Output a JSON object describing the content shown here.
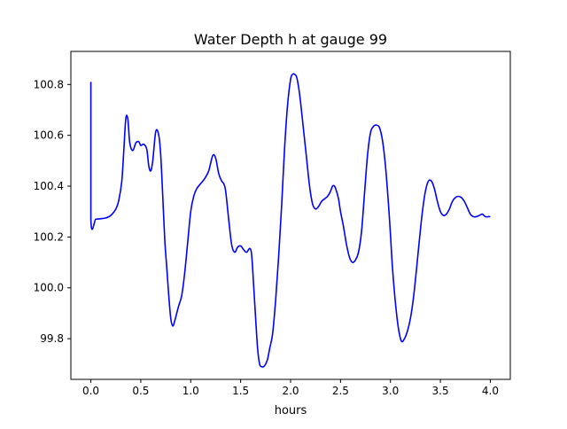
{
  "chart_data": {
    "type": "line",
    "title": "Water Depth h at gauge 99",
    "xlabel": "hours",
    "ylabel": "",
    "xlim": [
      -0.2,
      4.2
    ],
    "ylim": [
      99.64,
      100.93
    ],
    "xticks": [
      0.0,
      0.5,
      1.0,
      1.5,
      2.0,
      2.5,
      3.0,
      3.5,
      4.0
    ],
    "xtick_labels": [
      "0.0",
      "0.5",
      "1.0",
      "1.5",
      "2.0",
      "2.5",
      "3.0",
      "3.5",
      "4.0"
    ],
    "yticks": [
      99.8,
      100.0,
      100.2,
      100.4,
      100.6,
      100.8
    ],
    "ytick_labels": [
      "99.8",
      "100.0",
      "100.2",
      "100.4",
      "100.6",
      "100.8"
    ],
    "grid": false,
    "series": [
      {
        "color": "#0000ff",
        "x": [
          0.0,
          0.0,
          0.05,
          0.1,
          0.15,
          0.2,
          0.25,
          0.28,
          0.31,
          0.33,
          0.35,
          0.37,
          0.39,
          0.42,
          0.45,
          0.48,
          0.5,
          0.53,
          0.56,
          0.58,
          0.6,
          0.62,
          0.65,
          0.68,
          0.7,
          0.72,
          0.74,
          0.76,
          0.78,
          0.8,
          0.82,
          0.84,
          0.86,
          0.88,
          0.91,
          0.94,
          0.97,
          1.0,
          1.03,
          1.06,
          1.1,
          1.14,
          1.18,
          1.22,
          1.25,
          1.28,
          1.31,
          1.33,
          1.35,
          1.38,
          1.41,
          1.44,
          1.47,
          1.5,
          1.53,
          1.56,
          1.59,
          1.61,
          1.63,
          1.65,
          1.67,
          1.69,
          1.71,
          1.73,
          1.75,
          1.77,
          1.79,
          1.82,
          1.85,
          1.88,
          1.91,
          1.94,
          1.97,
          2.0,
          2.02,
          2.04,
          2.06,
          2.08,
          2.1,
          2.13,
          2.16,
          2.19,
          2.22,
          2.25,
          2.28,
          2.31,
          2.34,
          2.37,
          2.4,
          2.42,
          2.44,
          2.46,
          2.48,
          2.5,
          2.53,
          2.56,
          2.59,
          2.62,
          2.65,
          2.68,
          2.71,
          2.74,
          2.77,
          2.8,
          2.83,
          2.86,
          2.89,
          2.92,
          2.95,
          2.98,
          3.0,
          3.02,
          3.05,
          3.08,
          3.11,
          3.14,
          3.17,
          3.2,
          3.23,
          3.26,
          3.29,
          3.32,
          3.35,
          3.38,
          3.41,
          3.44,
          3.47,
          3.5,
          3.53,
          3.56,
          3.59,
          3.62,
          3.65,
          3.68,
          3.71,
          3.74,
          3.77,
          3.8,
          3.83,
          3.86,
          3.89,
          3.92,
          3.95,
          3.98,
          4.0
        ],
        "y": [
          100.81,
          100.27,
          100.27,
          100.272,
          100.275,
          100.285,
          100.31,
          100.345,
          100.42,
          100.54,
          100.665,
          100.665,
          100.57,
          100.54,
          100.57,
          100.575,
          100.56,
          100.565,
          100.545,
          100.48,
          100.46,
          100.5,
          100.615,
          100.6,
          100.52,
          100.36,
          100.19,
          100.08,
          99.97,
          99.88,
          99.85,
          99.87,
          99.9,
          99.93,
          99.97,
          100.06,
          100.18,
          100.3,
          100.36,
          100.39,
          100.41,
          100.43,
          100.46,
          100.52,
          100.51,
          100.45,
          100.42,
          100.41,
          100.38,
          100.27,
          100.17,
          100.14,
          100.16,
          100.165,
          100.15,
          100.14,
          100.155,
          100.13,
          100.01,
          99.88,
          99.76,
          99.7,
          99.69,
          99.69,
          99.7,
          99.72,
          99.76,
          99.82,
          99.95,
          100.12,
          100.32,
          100.55,
          100.72,
          100.82,
          100.84,
          100.84,
          100.83,
          100.79,
          100.73,
          100.62,
          100.51,
          100.4,
          100.33,
          100.31,
          100.32,
          100.34,
          100.35,
          100.36,
          100.38,
          100.4,
          100.4,
          100.38,
          100.35,
          100.3,
          100.24,
          100.17,
          100.12,
          100.1,
          100.11,
          100.14,
          100.22,
          100.37,
          100.52,
          100.61,
          100.635,
          100.64,
          100.63,
          100.58,
          100.48,
          100.33,
          100.21,
          100.08,
          99.94,
          99.84,
          99.79,
          99.8,
          99.83,
          99.88,
          99.96,
          100.07,
          100.19,
          100.3,
          100.38,
          100.42,
          100.42,
          100.39,
          100.34,
          100.3,
          100.285,
          100.29,
          100.31,
          100.34,
          100.355,
          100.36,
          100.355,
          100.34,
          100.315,
          100.29,
          100.28,
          100.28,
          100.285,
          100.29,
          100.28,
          100.28,
          100.28
        ]
      }
    ]
  }
}
